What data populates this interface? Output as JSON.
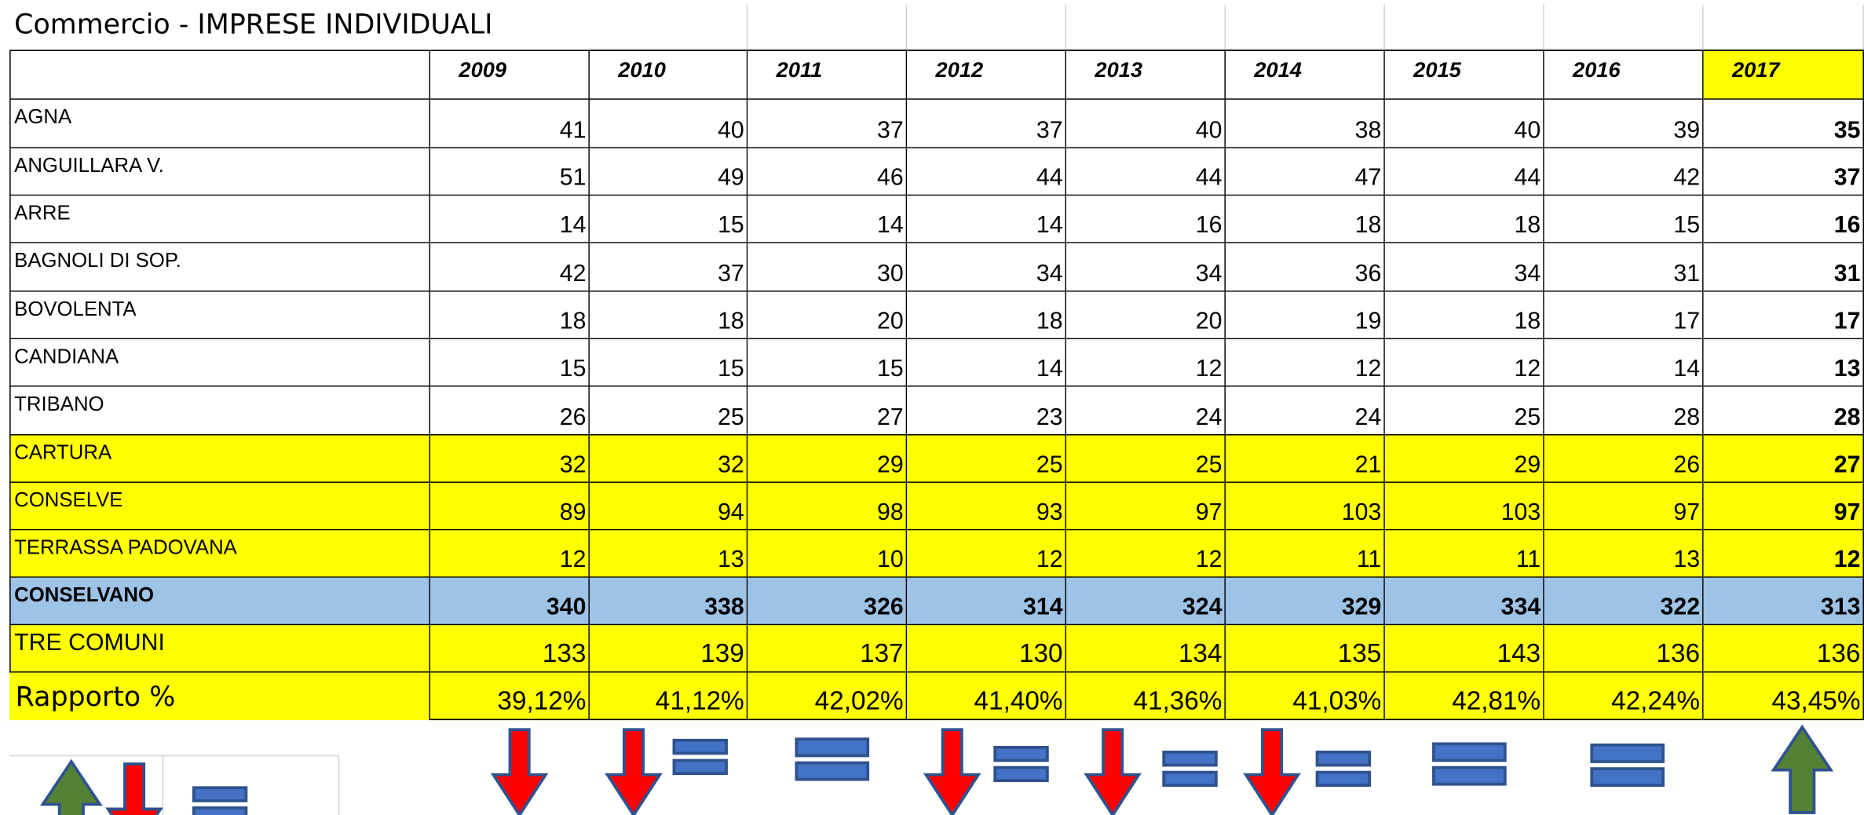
{
  "title": "Commercio - IMPRESE INDIVIDUALI",
  "years": [
    "2009",
    "2010",
    "2011",
    "2012",
    "2013",
    "2014",
    "2015",
    "2016",
    "2017"
  ],
  "rows": [
    {
      "name": "AGNA",
      "values": [
        "41",
        "40",
        "37",
        "37",
        "40",
        "38",
        "40",
        "39",
        "35"
      ]
    },
    {
      "name": "ANGUILLARA V.",
      "values": [
        "51",
        "49",
        "46",
        "44",
        "44",
        "47",
        "44",
        "42",
        "37"
      ]
    },
    {
      "name": "ARRE",
      "values": [
        "14",
        "15",
        "14",
        "14",
        "16",
        "18",
        "18",
        "15",
        "16"
      ]
    },
    {
      "name": "BAGNOLI DI SOP.",
      "values": [
        "42",
        "37",
        "30",
        "34",
        "34",
        "36",
        "34",
        "31",
        "31"
      ]
    },
    {
      "name": "BOVOLENTA",
      "values": [
        "18",
        "18",
        "20",
        "18",
        "20",
        "19",
        "18",
        "17",
        "17"
      ]
    },
    {
      "name": "CANDIANA",
      "values": [
        "15",
        "15",
        "15",
        "14",
        "12",
        "12",
        "12",
        "14",
        "13"
      ]
    },
    {
      "name": "TRIBANO",
      "values": [
        "26",
        "25",
        "27",
        "23",
        "24",
        "24",
        "25",
        "28",
        "28"
      ]
    },
    {
      "name": "CARTURA",
      "values": [
        "32",
        "32",
        "29",
        "25",
        "25",
        "21",
        "29",
        "26",
        "27"
      ]
    },
    {
      "name": "CONSELVE",
      "values": [
        "89",
        "94",
        "98",
        "93",
        "97",
        "103",
        "103",
        "97",
        "97"
      ]
    },
    {
      "name": "TERRASSA PADOVANA",
      "values": [
        "12",
        "13",
        "10",
        "12",
        "12",
        "11",
        "11",
        "13",
        "12"
      ]
    },
    {
      "name": "CONSELVANO",
      "values": [
        "340",
        "338",
        "326",
        "314",
        "324",
        "329",
        "334",
        "322",
        "313"
      ]
    },
    {
      "name": "TRE COMUNI",
      "values": [
        "133",
        "139",
        "137",
        "130",
        "134",
        "135",
        "143",
        "136",
        "136"
      ]
    },
    {
      "name": "Rapporto %",
      "values": [
        "39,12%",
        "41,12%",
        "42,02%",
        "41,40%",
        "41,36%",
        "41,03%",
        "42,81%",
        "42,24%",
        "43,45%"
      ]
    }
  ]
}
